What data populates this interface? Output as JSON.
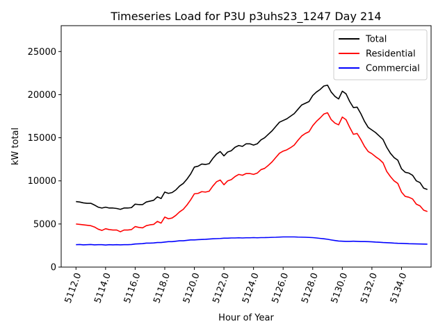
{
  "chart_data": {
    "type": "line",
    "title": "Timeseries Load for P3U p3uhs23_1247  Day 214",
    "xlabel": "Hour of Year",
    "ylabel": "kW total",
    "xlim": [
      5111.0,
      5136.0
    ],
    "ylim": [
      0,
      28000
    ],
    "xticks": [
      5112,
      5114,
      5116,
      5118,
      5120,
      5122,
      5124,
      5126,
      5128,
      5130,
      5132,
      5134
    ],
    "xtick_labels": [
      "5112.0",
      "5114.0",
      "5116.0",
      "5118.0",
      "5120.0",
      "5122.0",
      "5124.0",
      "5126.0",
      "5128.0",
      "5130.0",
      "5132.0",
      "5134.0"
    ],
    "yticks": [
      0,
      5000,
      10000,
      15000,
      20000,
      25000
    ],
    "ytick_labels": [
      "0",
      "5000",
      "10000",
      "15000",
      "20000",
      "25000"
    ],
    "legend_position": "top-right",
    "series": [
      {
        "name": "Total",
        "color": "#000000",
        "x": [
          5112.0,
          5112.25,
          5112.5,
          5112.75,
          5113.0,
          5113.25,
          5113.5,
          5113.75,
          5114.0,
          5114.25,
          5114.5,
          5114.75,
          5115.0,
          5115.25,
          5115.5,
          5115.75,
          5116.0,
          5116.25,
          5116.5,
          5116.75,
          5117.0,
          5117.25,
          5117.5,
          5117.75,
          5118.0,
          5118.25,
          5118.5,
          5118.75,
          5119.0,
          5119.25,
          5119.5,
          5119.75,
          5120.0,
          5120.25,
          5120.5,
          5120.75,
          5121.0,
          5121.25,
          5121.5,
          5121.75,
          5122.0,
          5122.25,
          5122.5,
          5122.75,
          5123.0,
          5123.25,
          5123.5,
          5123.75,
          5124.0,
          5124.25,
          5124.5,
          5124.75,
          5125.0,
          5125.25,
          5125.5,
          5125.75,
          5126.0,
          5126.25,
          5126.5,
          5126.75,
          5127.0,
          5127.25,
          5127.5,
          5127.75,
          5128.0,
          5128.25,
          5128.5,
          5128.75,
          5129.0,
          5129.25,
          5129.5,
          5129.75,
          5130.0,
          5130.25,
          5130.5,
          5130.75,
          5131.0,
          5131.25,
          5131.5,
          5131.75,
          5132.0,
          5132.25,
          5132.5,
          5132.75,
          5133.0,
          5133.25,
          5133.5,
          5133.75,
          5134.0,
          5134.25,
          5134.5,
          5134.75,
          5135.0,
          5135.25,
          5135.5,
          5135.75
        ],
        "values": [
          7600,
          7550,
          7450,
          7400,
          7400,
          7200,
          6950,
          6850,
          6950,
          6850,
          6850,
          6800,
          6700,
          6850,
          6850,
          6900,
          7300,
          7250,
          7250,
          7550,
          7650,
          7750,
          8150,
          7950,
          8700,
          8550,
          8650,
          8950,
          9400,
          9700,
          10200,
          10800,
          11600,
          11700,
          11950,
          11900,
          12000,
          12600,
          13100,
          13400,
          12900,
          13350,
          13500,
          13900,
          14100,
          14000,
          14300,
          14300,
          14150,
          14300,
          14750,
          15000,
          15400,
          15800,
          16300,
          16800,
          17000,
          17200,
          17500,
          17800,
          18300,
          18800,
          19000,
          19200,
          19900,
          20300,
          20600,
          21000,
          21100,
          20300,
          19800,
          19500,
          20400,
          20100,
          19200,
          18500,
          18550,
          17800,
          16900,
          16200,
          15900,
          15600,
          15200,
          14800,
          13900,
          13200,
          12700,
          12400,
          11400,
          11000,
          10900,
          10650,
          10000,
          9800,
          9150,
          9000
        ]
      },
      {
        "name": "Residential",
        "color": "#ff0000",
        "x": [
          5112.0,
          5112.25,
          5112.5,
          5112.75,
          5113.0,
          5113.25,
          5113.5,
          5113.75,
          5114.0,
          5114.25,
          5114.5,
          5114.75,
          5115.0,
          5115.25,
          5115.5,
          5115.75,
          5116.0,
          5116.25,
          5116.5,
          5116.75,
          5117.0,
          5117.25,
          5117.5,
          5117.75,
          5118.0,
          5118.25,
          5118.5,
          5118.75,
          5119.0,
          5119.25,
          5119.5,
          5119.75,
          5120.0,
          5120.25,
          5120.5,
          5120.75,
          5121.0,
          5121.25,
          5121.5,
          5121.75,
          5122.0,
          5122.25,
          5122.5,
          5122.75,
          5123.0,
          5123.25,
          5123.5,
          5123.75,
          5124.0,
          5124.25,
          5124.5,
          5124.75,
          5125.0,
          5125.25,
          5125.5,
          5125.75,
          5126.0,
          5126.25,
          5126.5,
          5126.75,
          5127.0,
          5127.25,
          5127.5,
          5127.75,
          5128.0,
          5128.25,
          5128.5,
          5128.75,
          5129.0,
          5129.25,
          5129.5,
          5129.75,
          5130.0,
          5130.25,
          5130.5,
          5130.75,
          5131.0,
          5131.25,
          5131.5,
          5131.75,
          5132.0,
          5132.25,
          5132.5,
          5132.75,
          5133.0,
          5133.25,
          5133.5,
          5133.75,
          5134.0,
          5134.25,
          5134.5,
          5134.75,
          5135.0,
          5135.25,
          5135.5,
          5135.75
        ],
        "values": [
          5000,
          4950,
          4900,
          4850,
          4800,
          4650,
          4400,
          4250,
          4450,
          4350,
          4300,
          4300,
          4100,
          4300,
          4300,
          4350,
          4700,
          4600,
          4550,
          4800,
          4900,
          4950,
          5300,
          5100,
          5800,
          5600,
          5700,
          6000,
          6400,
          6700,
          7200,
          7800,
          8500,
          8550,
          8750,
          8700,
          8800,
          9400,
          9900,
          10100,
          9550,
          10000,
          10150,
          10500,
          10750,
          10650,
          10850,
          10850,
          10750,
          10900,
          11300,
          11450,
          11800,
          12200,
          12700,
          13200,
          13450,
          13600,
          13850,
          14150,
          14700,
          15200,
          15500,
          15700,
          16400,
          16900,
          17300,
          17750,
          17900,
          17100,
          16700,
          16500,
          17400,
          17100,
          16200,
          15400,
          15500,
          14800,
          14000,
          13400,
          13150,
          12800,
          12500,
          12100,
          11100,
          10500,
          10000,
          9700,
          8700,
          8200,
          8100,
          7900,
          7300,
          7100,
          6600,
          6450
        ]
      },
      {
        "name": "Commercial",
        "color": "#0000ff",
        "x": [
          5112.0,
          5112.25,
          5112.5,
          5112.75,
          5113.0,
          5113.25,
          5113.5,
          5113.75,
          5114.0,
          5114.25,
          5114.5,
          5114.75,
          5115.0,
          5115.25,
          5115.5,
          5115.75,
          5116.0,
          5116.25,
          5116.5,
          5116.75,
          5117.0,
          5117.25,
          5117.5,
          5117.75,
          5118.0,
          5118.25,
          5118.5,
          5118.75,
          5119.0,
          5119.25,
          5119.5,
          5119.75,
          5120.0,
          5120.25,
          5120.5,
          5120.75,
          5121.0,
          5121.25,
          5121.5,
          5121.75,
          5122.0,
          5122.25,
          5122.5,
          5122.75,
          5123.0,
          5123.25,
          5123.5,
          5123.75,
          5124.0,
          5124.25,
          5124.5,
          5124.75,
          5125.0,
          5125.25,
          5125.5,
          5125.75,
          5126.0,
          5126.25,
          5126.5,
          5126.75,
          5127.0,
          5127.25,
          5127.5,
          5127.75,
          5128.0,
          5128.25,
          5128.5,
          5128.75,
          5129.0,
          5129.25,
          5129.5,
          5129.75,
          5130.0,
          5130.25,
          5130.5,
          5130.75,
          5131.0,
          5131.25,
          5131.5,
          5131.75,
          5132.0,
          5132.25,
          5132.5,
          5132.75,
          5133.0,
          5133.25,
          5133.5,
          5133.75,
          5134.0,
          5134.25,
          5134.5,
          5134.75,
          5135.0,
          5135.25,
          5135.5,
          5135.75
        ],
        "values": [
          2600,
          2620,
          2580,
          2600,
          2620,
          2580,
          2600,
          2600,
          2560,
          2600,
          2580,
          2600,
          2580,
          2600,
          2600,
          2620,
          2680,
          2700,
          2720,
          2780,
          2780,
          2800,
          2850,
          2850,
          2900,
          2950,
          2950,
          3000,
          3050,
          3050,
          3100,
          3150,
          3150,
          3180,
          3200,
          3220,
          3250,
          3280,
          3300,
          3320,
          3350,
          3350,
          3380,
          3380,
          3400,
          3380,
          3400,
          3400,
          3420,
          3400,
          3420,
          3420,
          3430,
          3450,
          3460,
          3480,
          3500,
          3500,
          3500,
          3500,
          3480,
          3470,
          3460,
          3440,
          3420,
          3380,
          3330,
          3280,
          3230,
          3150,
          3080,
          3020,
          3000,
          2980,
          2980,
          3000,
          2980,
          2960,
          2960,
          2950,
          2930,
          2900,
          2880,
          2850,
          2830,
          2810,
          2780,
          2760,
          2750,
          2730,
          2710,
          2700,
          2690,
          2680,
          2670,
          2660
        ]
      }
    ]
  }
}
